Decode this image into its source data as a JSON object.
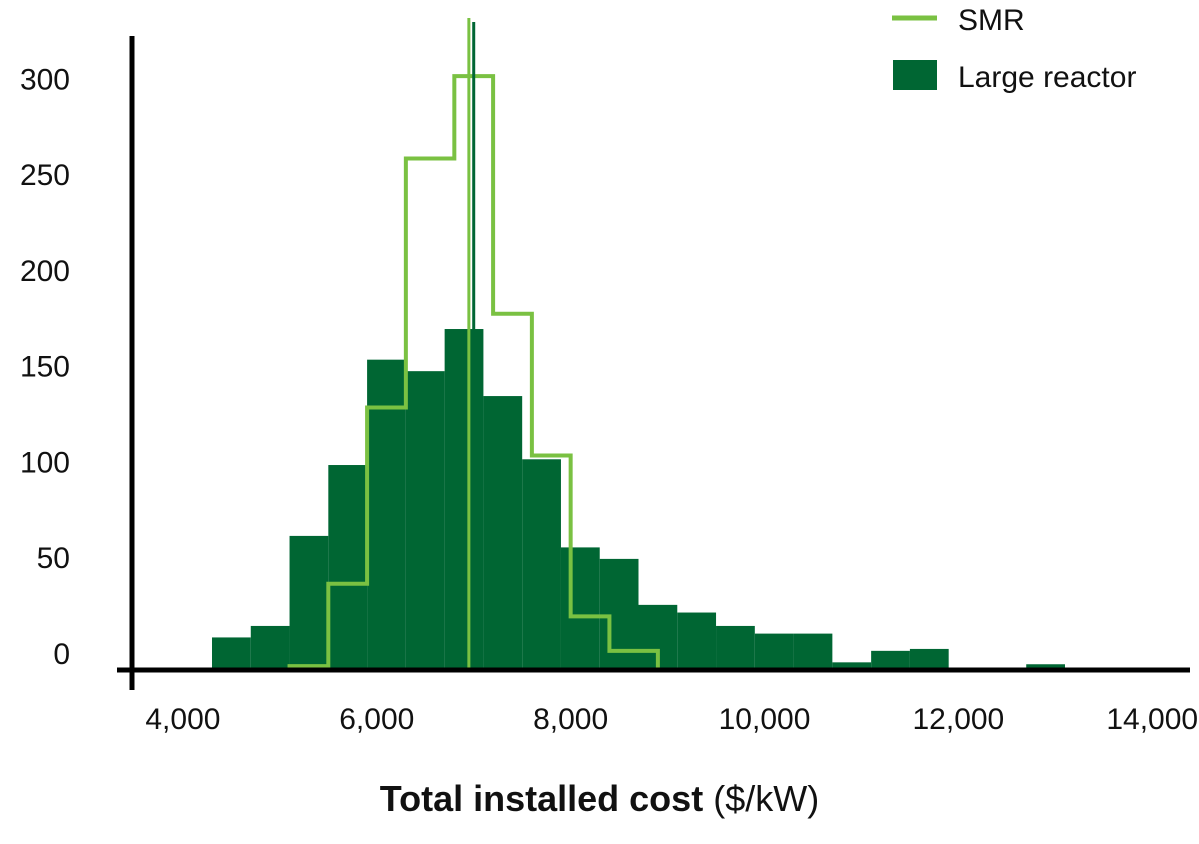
{
  "chart_data": {
    "type": "bar",
    "subtype": "histogram",
    "xlabel_bold": "Total installed cost",
    "xlabel_unit": "($/kW)",
    "x_ticks": [
      4000,
      6000,
      8000,
      10000,
      12000,
      14000
    ],
    "x_tick_labels": [
      "4,000",
      "6,000",
      "8,000",
      "10,000",
      "12,000",
      "14,000"
    ],
    "y_ticks": [
      0,
      50,
      100,
      150,
      200,
      250,
      300
    ],
    "y_tick_labels": [
      "0",
      "50",
      "100",
      "150",
      "200",
      "250",
      "300"
    ],
    "xlim": [
      3600,
      14400
    ],
    "ylim": [
      -10,
      320
    ],
    "grid": false,
    "legend_position": "top-right",
    "series": [
      {
        "name": "SMR",
        "style": "step-outline",
        "color": "#7ac142",
        "bin_edges": [
          5100,
          5500,
          5900,
          6300,
          6800,
          7200,
          7600,
          8000,
          8400,
          8900
        ],
        "values": [
          2,
          45,
          137,
          267,
          310,
          186,
          112,
          28,
          10
        ],
        "median": 6950
      },
      {
        "name": "Large reactor",
        "style": "filled-bars",
        "color": "#006633",
        "bin_edges": [
          4300,
          4700,
          5100,
          5500,
          5900,
          6300,
          6700,
          7100,
          7500,
          7900,
          8300,
          8700,
          9100,
          9500,
          9900,
          10300,
          10700,
          11100,
          11500,
          11900,
          12300,
          12700,
          13100
        ],
        "values": [
          17,
          23,
          70,
          107,
          162,
          156,
          178,
          143,
          110,
          64,
          58,
          34,
          30,
          23,
          19,
          19,
          4,
          10,
          11,
          0,
          0,
          3
        ],
        "median": 7000
      }
    ]
  }
}
